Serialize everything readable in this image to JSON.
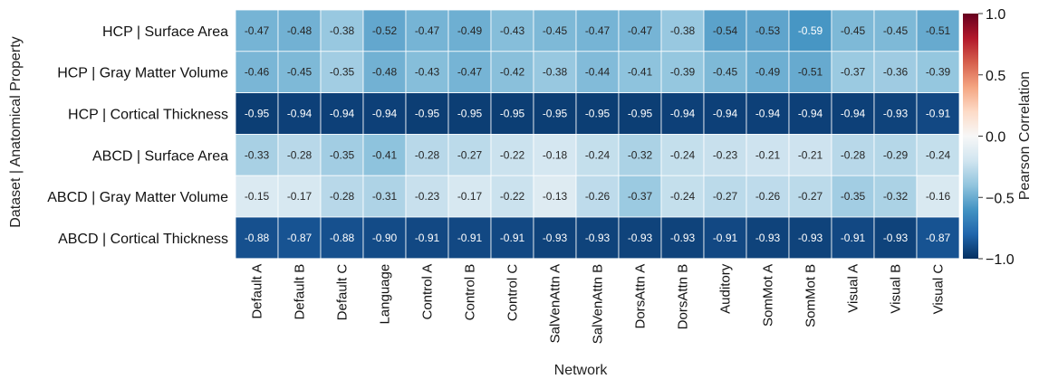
{
  "chart_data": {
    "type": "heatmap",
    "title": "",
    "xlabel": "Network",
    "ylabel": "Dataset | Anatomical Property",
    "rows": [
      "HCP | Surface Area",
      "HCP | Gray Matter Volume",
      "HCP | Cortical Thickness",
      "ABCD | Surface Area",
      "ABCD | Gray Matter Volume",
      "ABCD | Cortical Thickness"
    ],
    "columns": [
      "Default A",
      "Default B",
      "Default C",
      "Language",
      "Control A",
      "Control B",
      "Control C",
      "SalVenAttn A",
      "SalVenAttn B",
      "DorsAttn A",
      "DorsAttn B",
      "Auditory",
      "SomMot A",
      "SomMot B",
      "Visual A",
      "Visual B",
      "Visual C"
    ],
    "values": [
      [
        -0.47,
        -0.48,
        -0.38,
        -0.52,
        -0.47,
        -0.49,
        -0.43,
        -0.45,
        -0.47,
        -0.47,
        -0.38,
        -0.54,
        -0.53,
        -0.59,
        -0.45,
        -0.45,
        -0.51
      ],
      [
        -0.46,
        -0.45,
        -0.35,
        -0.48,
        -0.43,
        -0.47,
        -0.42,
        -0.38,
        -0.44,
        -0.41,
        -0.39,
        -0.45,
        -0.49,
        -0.51,
        -0.37,
        -0.36,
        -0.39
      ],
      [
        -0.95,
        -0.94,
        -0.94,
        -0.94,
        -0.95,
        -0.95,
        -0.95,
        -0.95,
        -0.95,
        -0.95,
        -0.94,
        -0.94,
        -0.94,
        -0.94,
        -0.94,
        -0.93,
        -0.91
      ],
      [
        -0.33,
        -0.28,
        -0.35,
        -0.41,
        -0.28,
        -0.27,
        -0.22,
        -0.18,
        -0.24,
        -0.32,
        -0.24,
        -0.23,
        -0.21,
        -0.21,
        -0.28,
        -0.29,
        -0.24
      ],
      [
        -0.15,
        -0.17,
        -0.28,
        -0.31,
        -0.23,
        -0.17,
        -0.22,
        -0.13,
        -0.26,
        -0.37,
        -0.24,
        -0.27,
        -0.26,
        -0.27,
        -0.35,
        -0.32,
        -0.16
      ],
      [
        -0.88,
        -0.87,
        -0.88,
        -0.9,
        -0.91,
        -0.91,
        -0.91,
        -0.93,
        -0.93,
        -0.93,
        -0.93,
        -0.91,
        -0.93,
        -0.93,
        -0.91,
        -0.93,
        -0.87
      ]
    ],
    "value_labels": [
      [
        "-0.47",
        "-0.48",
        "-0.38",
        "-0.52",
        "-0.47",
        "-0.49",
        "-0.43",
        "-0.45",
        "-0.47",
        "-0.47",
        "-0.38",
        "-0.54",
        "-0.53",
        "-0.59",
        "-0.45",
        "-0.45",
        "-0.51"
      ],
      [
        "-0.46",
        "-0.45",
        "-0.35",
        "-0.48",
        "-0.43",
        "-0.47",
        "-0.42",
        "-0.38",
        "-0.44",
        "-0.41",
        "-0.39",
        "-0.45",
        "-0.49",
        "-0.51",
        "-0.37",
        "-0.36",
        "-0.39"
      ],
      [
        "-0.95",
        "-0.94",
        "-0.94",
        "-0.94",
        "-0.95",
        "-0.95",
        "-0.95",
        "-0.95",
        "-0.95",
        "-0.95",
        "-0.94",
        "-0.94",
        "-0.94",
        "-0.94",
        "-0.94",
        "-0.93",
        "-0.91"
      ],
      [
        "-0.33",
        "-0.28",
        "-0.35",
        "-0.41",
        "-0.28",
        "-0.27",
        "-0.22",
        "-0.18",
        "-0.24",
        "-0.32",
        "-0.24",
        "-0.23",
        "-0.21",
        "-0.21",
        "-0.28",
        "-0.29",
        "-0.24"
      ],
      [
        "-0.15",
        "-0.17",
        "-0.28",
        "-0.31",
        "-0.23",
        "-0.17",
        "-0.22",
        "-0.13",
        "-0.26",
        "-0.37",
        "-0.24",
        "-0.27",
        "-0.26",
        "-0.27",
        "-0.35",
        "-0.32",
        "-0.16"
      ],
      [
        "-0.88",
        "-0.87",
        "-0.88",
        "-0.90",
        "-0.91",
        "-0.91",
        "-0.91",
        "-0.93",
        "-0.93",
        "-0.93",
        "-0.93",
        "-0.91",
        "-0.93",
        "-0.93",
        "-0.91",
        "-0.93",
        "-0.87"
      ]
    ],
    "colorbar": {
      "label": "Pearson Correlation",
      "range": [
        -1.0,
        1.0
      ],
      "ticks": [
        "1.0",
        "0.5",
        "0.0",
        "−0.5",
        "−1.0"
      ],
      "tick_values": [
        1.0,
        0.5,
        0.0,
        -0.5,
        -1.0
      ],
      "colormap": "RdBu_r",
      "colormap_stops": [
        "#053061",
        "#2166ac",
        "#4393c3",
        "#92c5de",
        "#d1e5f0",
        "#f7f7f7",
        "#fddbc7",
        "#f4a582",
        "#d6604d",
        "#b2182b",
        "#67001f"
      ]
    }
  }
}
